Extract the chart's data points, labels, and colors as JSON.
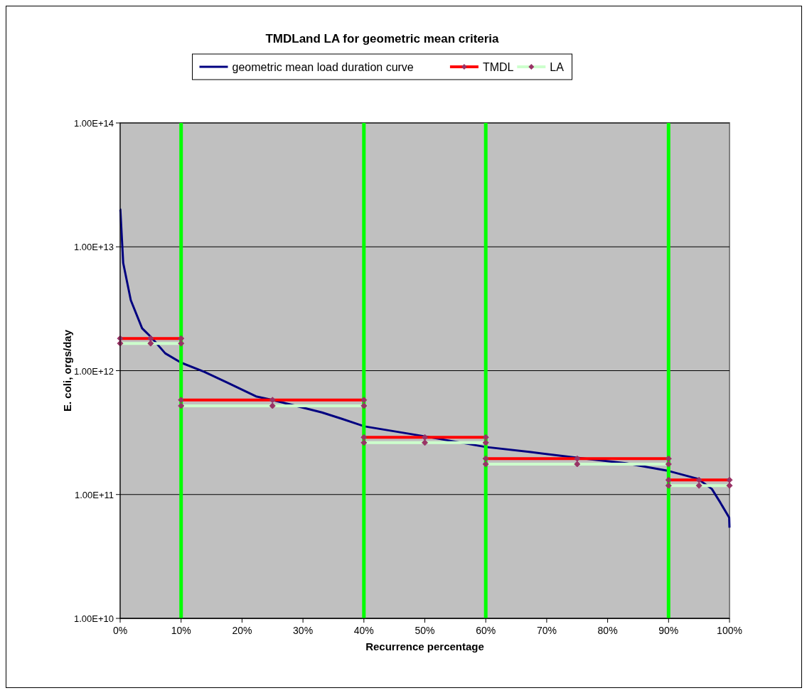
{
  "chart_data": {
    "type": "line",
    "title": "TMDLand LA for geometric mean criteria",
    "xlabel": "Recurrence percentage",
    "ylabel": "E. coli, orgs/day",
    "log": "y",
    "grid": "y",
    "legend": "top",
    "xlim": [
      0,
      100
    ],
    "xticks": [
      {
        "value": 0,
        "label": "0%"
      },
      {
        "value": 10,
        "label": "10%"
      },
      {
        "value": 20,
        "label": "20%"
      },
      {
        "value": 30,
        "label": "30%"
      },
      {
        "value": 40,
        "label": "40%"
      },
      {
        "value": 50,
        "label": "50%"
      },
      {
        "value": 60,
        "label": "60%"
      },
      {
        "value": 70,
        "label": "70%"
      },
      {
        "value": 80,
        "label": "80%"
      },
      {
        "value": 90,
        "label": "90%"
      },
      {
        "value": 100,
        "label": "100%"
      }
    ],
    "ylim": [
      10000000000.0,
      100000000000000.0
    ],
    "yticks": [
      {
        "value": 10000000000.0,
        "label": "1.00E+10"
      },
      {
        "value": 100000000000.0,
        "label": "1.00E+11"
      },
      {
        "value": 1000000000000.0,
        "label": "1.00E+12"
      },
      {
        "value": 10000000000000.0,
        "label": "1.00E+13"
      },
      {
        "value": 100000000000000.0,
        "label": "1.00E+14"
      }
    ],
    "ref_lines": [
      {
        "axis": "x",
        "value": 10,
        "color": "#00ff00"
      },
      {
        "axis": "x",
        "value": 40,
        "color": "#00ff00"
      },
      {
        "axis": "x",
        "value": 60,
        "color": "#00ff00"
      },
      {
        "axis": "x",
        "value": 90,
        "color": "#00ff00"
      }
    ],
    "series": [
      {
        "name": "geometric mean load duration curve",
        "color": "#000080",
        "marker": "none",
        "x": [
          0,
          0.03,
          0.5,
          1.75,
          3.6,
          5.1,
          7.4,
          10,
          13.8,
          17.6,
          22.3,
          25,
          33.1,
          36.3,
          40.1,
          49.8,
          60,
          67.4,
          75,
          83,
          90,
          94.8,
          97.1,
          98.5,
          99.95,
          100
        ],
        "values": [
          20000000000000.0,
          20000000000000.0,
          7400000000000.0,
          3700000000000.0,
          2200000000000.0,
          1860000000000.0,
          1380000000000.0,
          1160000000000.0,
          980000000000.0,
          800000000000.0,
          620000000000.0,
          580000000000.0,
          460000000000.0,
          410000000000.0,
          355000000000.0,
          296000000000.0,
          242000000000.0,
          220000000000.0,
          198000000000.0,
          179000000000.0,
          155000000000.0,
          134000000000.0,
          111000000000.0,
          86000000000.0,
          65000000000.0,
          54000000000.0
        ]
      },
      {
        "name": "TMDL",
        "color": "#ff0000",
        "marker": "diamond",
        "x": [
          0,
          5,
          10,
          10,
          25,
          40,
          40,
          50,
          60,
          60,
          75,
          90,
          90,
          95,
          100
        ],
        "values": [
          1820000000000.0,
          1820000000000.0,
          1820000000000.0,
          580000000000.0,
          580000000000.0,
          580000000000.0,
          290000000000.0,
          290000000000.0,
          290000000000.0,
          195000000000.0,
          195000000000.0,
          195000000000.0,
          131000000000.0,
          131000000000.0,
          131000000000.0
        ]
      },
      {
        "name": "LA",
        "color": "#ccffcc",
        "marker": "diamond",
        "x": [
          0,
          5,
          10,
          10,
          25,
          40,
          40,
          50,
          60,
          60,
          75,
          90,
          90,
          95,
          100
        ],
        "values": [
          1660000000000.0,
          1660000000000.0,
          1660000000000.0,
          520000000000.0,
          520000000000.0,
          520000000000.0,
          262000000000.0,
          262000000000.0,
          262000000000.0,
          176000000000.0,
          176000000000.0,
          176000000000.0,
          118000000000.0,
          118000000000.0,
          118000000000.0
        ]
      }
    ]
  }
}
